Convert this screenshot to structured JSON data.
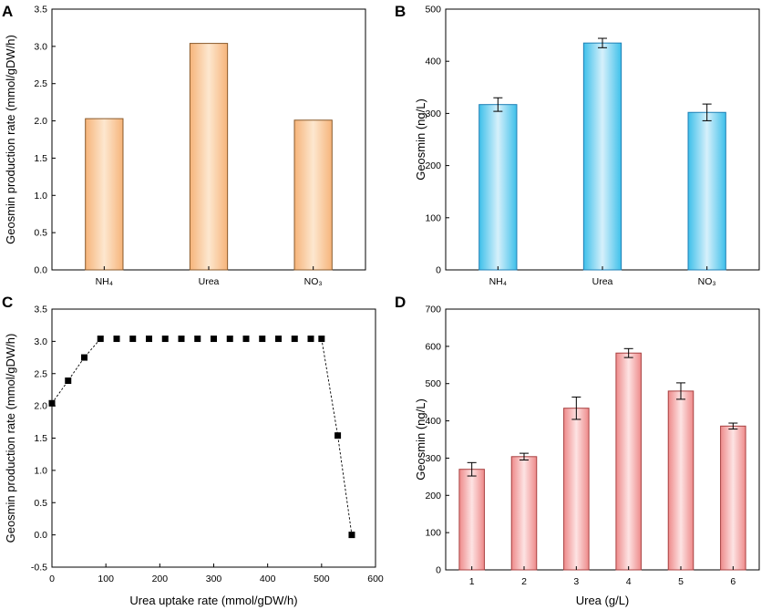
{
  "panels": {
    "A": "A",
    "B": "B",
    "C": "C",
    "D": "D"
  },
  "colors": {
    "orange_edge": "#8a5a2b",
    "orange_mid": "#fde7cf",
    "orange_side": "#f6b47a",
    "blue_edge": "#1f7fb5",
    "blue_mid": "#d6f0fb",
    "blue_side": "#3ec0ea",
    "red_edge": "#a84040",
    "red_mid": "#fde3e3",
    "red_side": "#ee8a8a"
  },
  "chart_data": [
    {
      "id": "A",
      "type": "bar",
      "categories": [
        "NH₄",
        "Urea",
        "NO₃"
      ],
      "values": [
        2.03,
        3.04,
        2.01
      ],
      "ylabel": "Geosmin production rate (mmol/gDW/h)",
      "xlabel": "",
      "ylim": [
        0,
        3.5
      ],
      "yticks": [
        "0.0",
        "0.5",
        "1.0",
        "1.5",
        "2.0",
        "2.5",
        "3.0",
        "3.5"
      ],
      "ytick_values": [
        0,
        0.5,
        1.0,
        1.5,
        2.0,
        2.5,
        3.0,
        3.5
      ],
      "palette": "orange"
    },
    {
      "id": "B",
      "type": "bar",
      "categories": [
        "NH₄",
        "Urea",
        "NO₃"
      ],
      "values": [
        317,
        435,
        302
      ],
      "errors": [
        13,
        9,
        16
      ],
      "ylabel": "Geosmin (ng/L)",
      "xlabel": "",
      "ylim": [
        0,
        500
      ],
      "yticks": [
        "0",
        "100",
        "200",
        "300",
        "400",
        "500"
      ],
      "ytick_values": [
        0,
        100,
        200,
        300,
        400,
        500
      ],
      "palette": "blue"
    },
    {
      "id": "C",
      "type": "scatter",
      "x": [
        0,
        30,
        60,
        90,
        120,
        150,
        180,
        210,
        240,
        270,
        300,
        330,
        360,
        390,
        420,
        450,
        480,
        500,
        530,
        556
      ],
      "y": [
        2.04,
        2.39,
        2.75,
        3.04,
        3.04,
        3.04,
        3.04,
        3.04,
        3.04,
        3.04,
        3.04,
        3.04,
        3.04,
        3.04,
        3.04,
        3.04,
        3.04,
        3.04,
        1.54,
        0.0
      ],
      "connect_segments": [
        [
          0,
          3
        ],
        [
          17,
          19
        ]
      ],
      "ylabel": "Geosmin production rate (mmol/gDW/h)",
      "xlabel": "Urea uptake rate (mmol/gDW/h)",
      "xlim": [
        0,
        600
      ],
      "ylim": [
        -0.5,
        3.5
      ],
      "xticks": [
        "0",
        "100",
        "200",
        "300",
        "400",
        "500",
        "600"
      ],
      "xtick_values": [
        0,
        100,
        200,
        300,
        400,
        500,
        600
      ],
      "yticks": [
        "-0.5",
        "0.0",
        "0.5",
        "1.0",
        "1.5",
        "2.0",
        "2.5",
        "3.0",
        "3.5"
      ],
      "ytick_values": [
        -0.5,
        0,
        0.5,
        1.0,
        1.5,
        2.0,
        2.5,
        3.0,
        3.5
      ]
    },
    {
      "id": "D",
      "type": "bar",
      "categories": [
        "1",
        "2",
        "3",
        "4",
        "5",
        "6"
      ],
      "values": [
        270,
        304,
        434,
        582,
        480,
        386
      ],
      "errors": [
        18,
        9,
        30,
        12,
        22,
        8
      ],
      "ylabel": "Geosmin (ng/L)",
      "xlabel": "Urea (g/L)",
      "ylim": [
        0,
        700
      ],
      "yticks": [
        "0",
        "100",
        "200",
        "300",
        "400",
        "500",
        "600",
        "700"
      ],
      "ytick_values": [
        0,
        100,
        200,
        300,
        400,
        500,
        600,
        700
      ],
      "palette": "red"
    }
  ]
}
